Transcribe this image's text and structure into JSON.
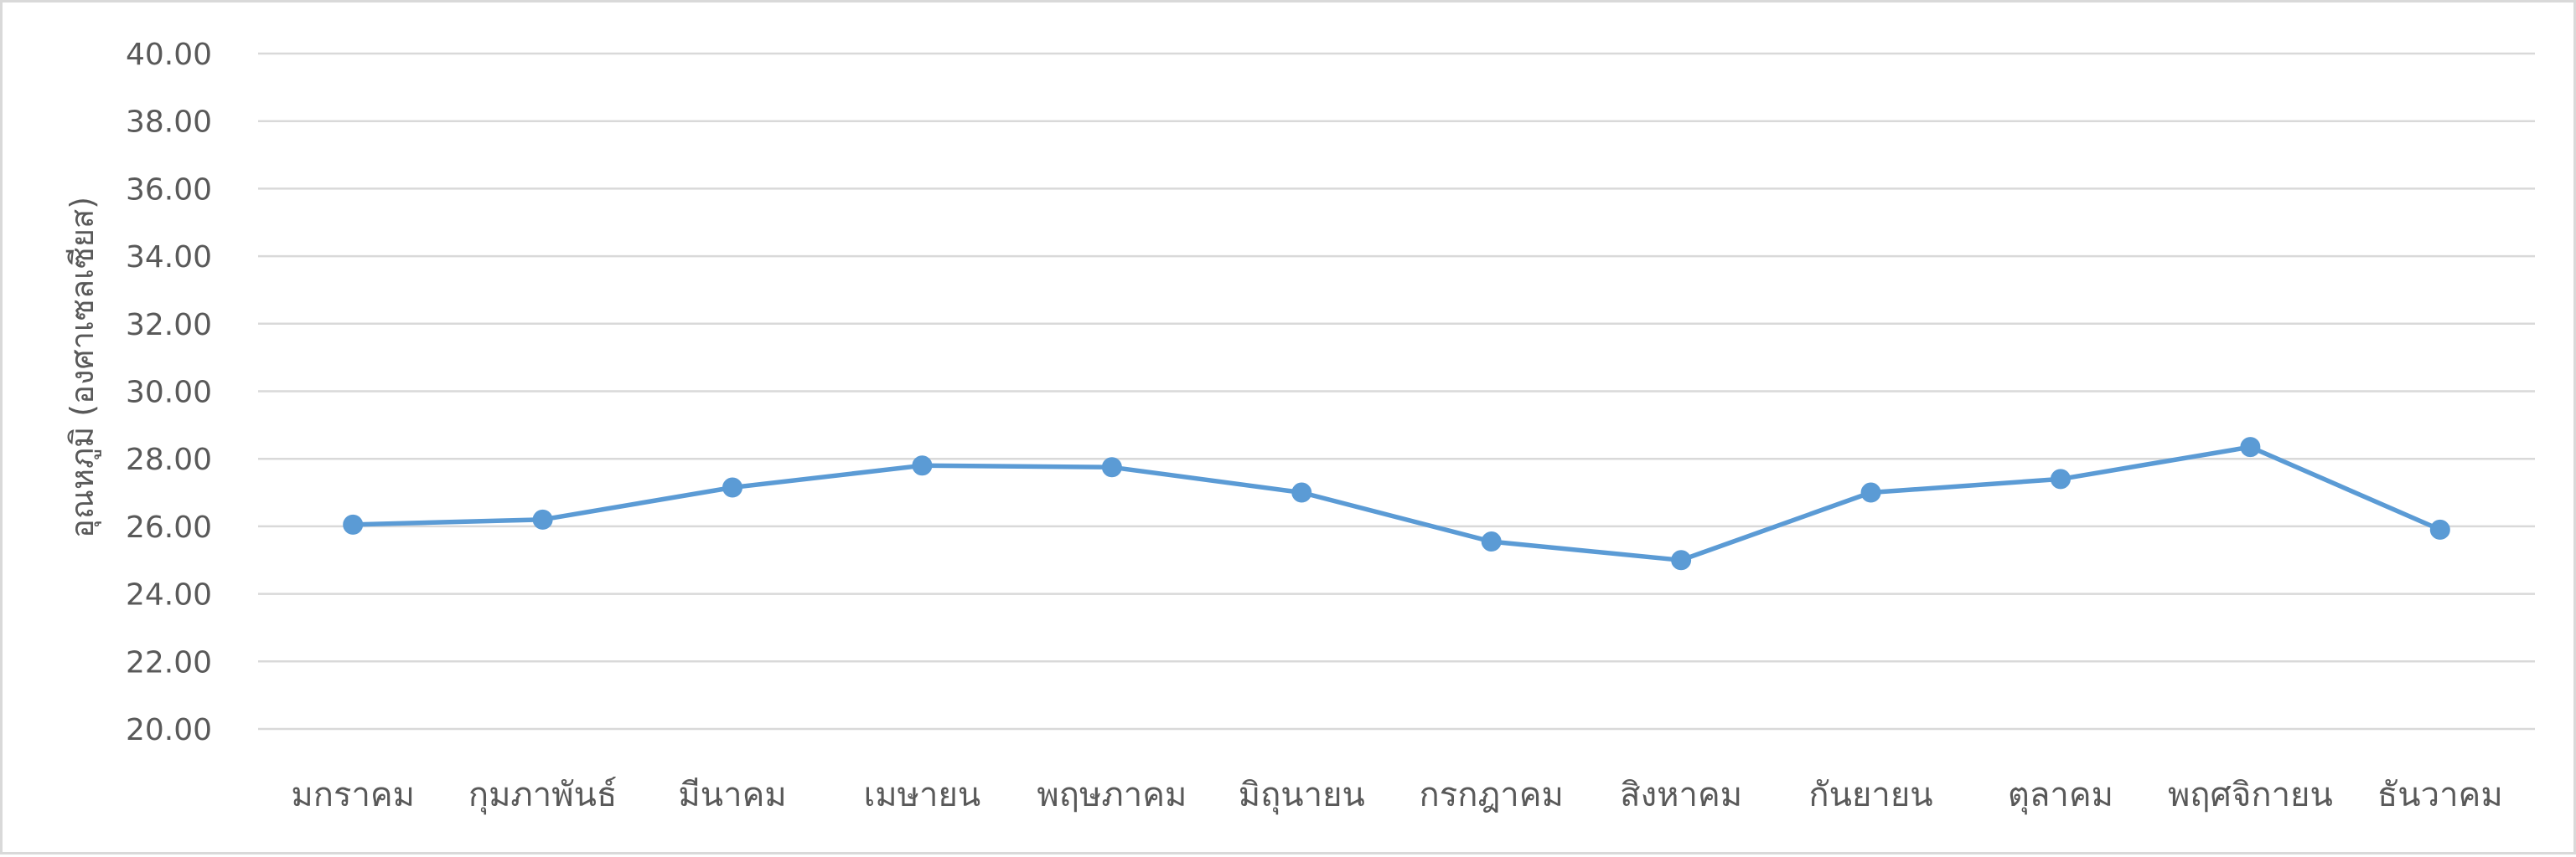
{
  "chart_data": {
    "type": "line",
    "title": "",
    "xlabel": "",
    "ylabel": "อุณหภูมิ (องศาเซลเซียส)",
    "ylim": [
      20,
      40
    ],
    "ytick_step": 2,
    "ytick_labels": [
      "20.00",
      "22.00",
      "24.00",
      "26.00",
      "28.00",
      "30.00",
      "32.00",
      "34.00",
      "36.00",
      "38.00",
      "40.00"
    ],
    "grid": true,
    "legend": "none",
    "line_color": "#5b9bd5",
    "categories": [
      "มกราคม",
      "กุมภาพันธ์",
      "มีนาคม",
      "เมษายน",
      "พฤษภาคม",
      "มิถุนายน",
      "กรกฎาคม",
      "สิงหาคม",
      "กันยายน",
      "ตุลาคม",
      "พฤศจิกายน",
      "ธันวาคม"
    ],
    "series": [
      {
        "values": [
          26.05,
          26.2,
          27.15,
          27.8,
          27.75,
          27.0,
          25.55,
          25.0,
          27.0,
          27.4,
          28.35,
          25.9
        ]
      }
    ]
  }
}
